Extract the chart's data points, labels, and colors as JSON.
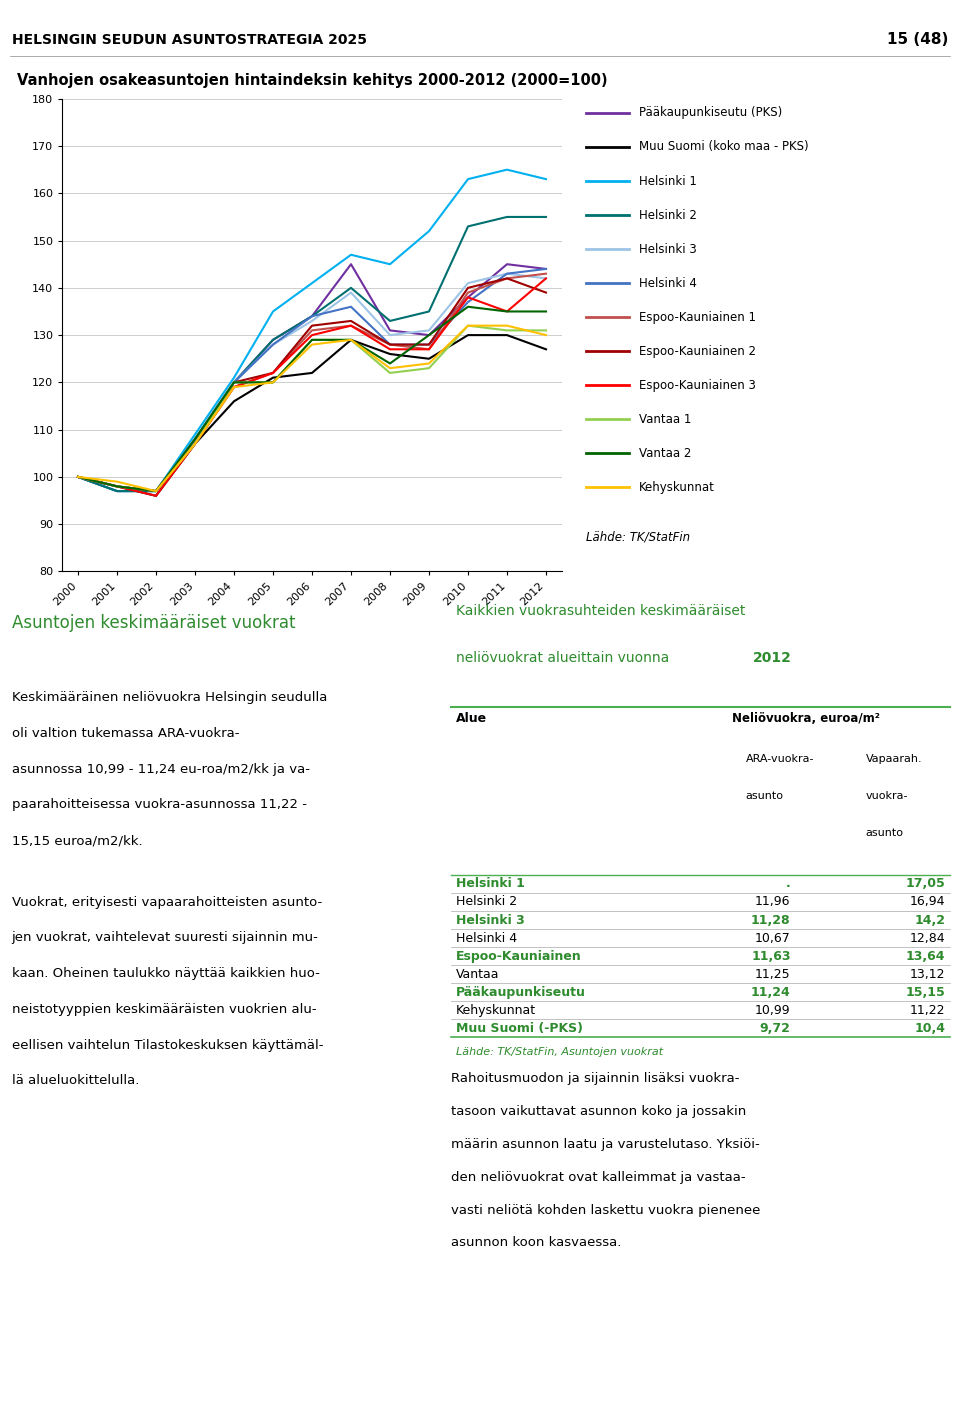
{
  "title_header": "HELSINGIN SEUDUN ASUNTOSTRATEGIA 2025",
  "page_num": "15 (48)",
  "chart_title": "Vanhojen osakeasuntojen hintaindeksin kehitys 2000-2012 (2000=100)",
  "years": [
    2000,
    2001,
    2002,
    2003,
    2004,
    2005,
    2006,
    2007,
    2008,
    2009,
    2010,
    2011,
    2012
  ],
  "series": [
    {
      "name": "Pääkaupunkiseutu (PKS)",
      "color": "#7030A0",
      "values": [
        100,
        97,
        97,
        108,
        120,
        129,
        134,
        145,
        131,
        130,
        138,
        145,
        144
      ]
    },
    {
      "name": "Muu Suomi (koko maa - PKS)",
      "color": "#000000",
      "values": [
        100,
        98,
        96,
        107,
        116,
        121,
        122,
        129,
        126,
        125,
        130,
        130,
        127
      ]
    },
    {
      "name": "Helsinki 1",
      "color": "#00B0F0",
      "values": [
        100,
        97,
        97,
        109,
        121,
        135,
        141,
        147,
        145,
        152,
        163,
        165,
        163
      ]
    },
    {
      "name": "Helsinki 2",
      "color": "#007070",
      "values": [
        100,
        97,
        97,
        108,
        120,
        129,
        134,
        140,
        133,
        135,
        153,
        155,
        155
      ]
    },
    {
      "name": "Helsinki 3",
      "color": "#9DC3E6",
      "values": [
        100,
        98,
        97,
        108,
        120,
        128,
        133,
        139,
        130,
        131,
        141,
        143,
        142
      ]
    },
    {
      "name": "Helsinki 4",
      "color": "#4472C4",
      "values": [
        100,
        98,
        97,
        108,
        120,
        128,
        134,
        136,
        128,
        128,
        137,
        143,
        144
      ]
    },
    {
      "name": "Espoo-Kauniainen 1",
      "color": "#C0504D",
      "values": [
        100,
        98,
        97,
        107,
        119,
        122,
        131,
        132,
        128,
        127,
        139,
        142,
        143
      ]
    },
    {
      "name": "Espoo-Kauniainen 2",
      "color": "#A00000",
      "values": [
        100,
        98,
        97,
        107,
        120,
        122,
        132,
        133,
        128,
        128,
        140,
        142,
        139
      ]
    },
    {
      "name": "Espoo-Kauniainen 3",
      "color": "#FF0000",
      "values": [
        100,
        98,
        96,
        107,
        119,
        122,
        130,
        132,
        127,
        127,
        138,
        135,
        142
      ]
    },
    {
      "name": "Vantaa 1",
      "color": "#92D050",
      "values": [
        100,
        98,
        97,
        107,
        120,
        120,
        129,
        129,
        122,
        123,
        132,
        131,
        131
      ]
    },
    {
      "name": "Vantaa 2",
      "color": "#006400",
      "values": [
        100,
        98,
        97,
        108,
        120,
        120,
        129,
        129,
        124,
        130,
        136,
        135,
        135
      ]
    },
    {
      "name": "Kehyskunnat",
      "color": "#FFC000",
      "values": [
        100,
        99,
        97,
        107,
        119,
        120,
        128,
        129,
        123,
        124,
        132,
        132,
        130
      ]
    }
  ],
  "ylim": [
    80,
    180
  ],
  "yticks": [
    80,
    90,
    100,
    110,
    120,
    130,
    140,
    150,
    160,
    170,
    180
  ],
  "section_left_title": "Asuntojen keskimääräiset vuokrat",
  "section_left_color": "#2E8B2E",
  "section_left_body1": "Keskimääräinen neliövuokra Helsingin seudulla oli valtion tukemassa ARA-vuokra-asunnossa 10,99 - 11,24 eu-roa/m2/kk ja vapaarahoitteisessa vuokra-asunnossa 11,22 - 15,15 euroa/m2/kk.",
  "section_left_body2": "Vuokrat, erityisesti vapaarahoitteisten asuntojen vuokrat, vaihtelevat suuresti sijainnin mukaan. Oheinen taulukko näyttää kaikkien huoneistotyyppien keskimääräisten vuokrien alueellisen vaihtelun Tilastokeskuksen käyttämällä alueluokittelulla.",
  "table_title1": "Kaikkien vuokrasuhteiden keskimääräiset",
  "table_title2": "neliövuokrat alueittain vuonna 2012",
  "table_title2_normal": "neliövuokrat alueittain vuonna ",
  "table_title2_bold": "2012",
  "table_title_color": "#2E8B2E",
  "table_source": "Lähde: TK/StatFin, Asuntojen vuokrat",
  "table_source_color": "#2E8B2E",
  "green_line_color": "#4CAF50",
  "table_rows": [
    {
      "area": "Helsinki 1",
      "ara": ".",
      "vapaa": "17,05",
      "bold": true
    },
    {
      "area": "Helsinki 2",
      "ara": "11,96",
      "vapaa": "16,94",
      "bold": false
    },
    {
      "area": "Helsinki 3",
      "ara": "11,28",
      "vapaa": "14,2",
      "bold": true
    },
    {
      "area": "Helsinki 4",
      "ara": "10,67",
      "vapaa": "12,84",
      "bold": false
    },
    {
      "area": "Espoo-Kauniainen",
      "ara": "11,63",
      "vapaa": "13,64",
      "bold": true
    },
    {
      "area": "Vantaa",
      "ara": "11,25",
      "vapaa": "13,12",
      "bold": false
    },
    {
      "area": "Pääkaupunkiseutu",
      "ara": "11,24",
      "vapaa": "15,15",
      "bold": true
    },
    {
      "area": "Kehyskunnat",
      "ara": "10,99",
      "vapaa": "11,22",
      "bold": false
    },
    {
      "area": "Muu Suomi (-PKS)",
      "ara": "9,72",
      "vapaa": "10,4",
      "bold": true
    }
  ],
  "bottom_text": "Rahoitusmuodon ja sijainnin lisäksi vuokratasoon vaikuttavat asunnon koko ja jossakin määrin asunnon laatu ja varustelutaso. Yksiöiden neliövuokrat ovat kalleimmat ja vastaavasti neliötä kohden laskettu vuokra pienenee asunnon koon kasvaessa."
}
